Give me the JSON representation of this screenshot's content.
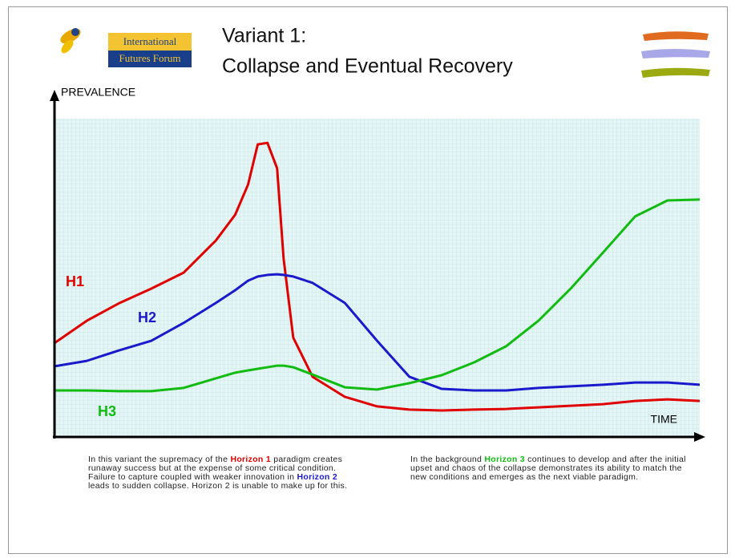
{
  "header": {
    "logo_line1": "International",
    "logo_line2": "Futures Forum",
    "title_line1": "Variant 1:",
    "title_line2": "Collapse and Eventual Recovery"
  },
  "chart_data": {
    "type": "line",
    "y_label": "PREVALENCE",
    "x_label": "TIME",
    "xlim": [
      0,
      100
    ],
    "ylim": [
      0,
      100
    ],
    "x": [
      0,
      5,
      10,
      15,
      20,
      25,
      28,
      30,
      31.5,
      33,
      34.5,
      35.5,
      37,
      40,
      45,
      50,
      55,
      60,
      65,
      70,
      75,
      80,
      85,
      90,
      95,
      100
    ],
    "series": [
      {
        "name": "H1",
        "color": "#e00000",
        "values": [
          29.5,
          36.5,
          42,
          46.6,
          51.6,
          61.7,
          69.8,
          79.3,
          91.9,
          92.4,
          84.4,
          56.2,
          31.2,
          18.9,
          12.6,
          9.6,
          8.6,
          8.3,
          8.6,
          8.8,
          9.3,
          9.8,
          10.3,
          11.3,
          11.8,
          11.3
        ]
      },
      {
        "name": "H2",
        "color": "#1a1acc",
        "values": [
          22.2,
          23.9,
          27.2,
          30.2,
          35.8,
          42.1,
          46.1,
          49.1,
          50.4,
          50.9,
          51.1,
          50.9,
          50.4,
          48.4,
          42.1,
          30.2,
          18.9,
          15.1,
          14.6,
          14.6,
          15.4,
          15.9,
          16.4,
          17.1,
          17.1,
          16.4
        ]
      },
      {
        "name": "H3",
        "color": "#11bb11",
        "values": [
          14.6,
          14.6,
          14.4,
          14.4,
          15.4,
          18.4,
          20.2,
          20.9,
          21.4,
          21.9,
          22.4,
          22.4,
          21.9,
          19.6,
          15.6,
          14.9,
          16.9,
          19.4,
          23.4,
          28.5,
          36.5,
          46.6,
          57.9,
          69.3,
          74.3,
          74.6
        ]
      }
    ]
  },
  "notes": {
    "left": [
      "In this variant the supremacy of the ",
      "Horizon 1",
      " paradigm creates runaway success but at the expense of some critical condition. Failure to capture coupled with weaker innovation in ",
      "Horizon 2",
      " leads to sudden collapse.  Horizon 2 is unable to  make up for this."
    ],
    "right": [
      "In the background ",
      "Horizon 3",
      " continues to develop and after the initial upset and chaos of the collapse demonstrates its ability to match the new conditions and emerges as the next viable paradigm."
    ]
  }
}
